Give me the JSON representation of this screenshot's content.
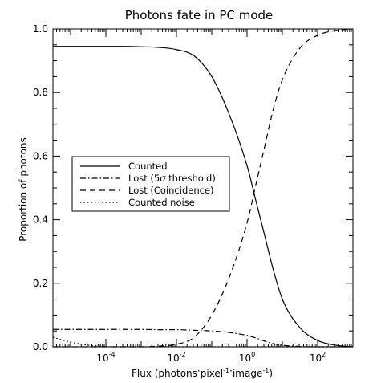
{
  "chart_data": {
    "type": "line",
    "title": "Photons fate in PC mode",
    "xlabel": {
      "base": "Flux (photons",
      "mid1": "pixel",
      "sup1": "-1",
      "mid2": "image",
      "sup2": "-1",
      "end": ")"
    },
    "ylabel": "Proportion of photons",
    "xscale": "log",
    "xlim_log10": [
      -5.5,
      3.0
    ],
    "ylim": [
      0.0,
      1.0
    ],
    "x_ticks": [
      {
        "base": "10",
        "exp": "-4",
        "log10": -4
      },
      {
        "base": "10",
        "exp": "-2",
        "log10": -2
      },
      {
        "base": "10",
        "exp": "0",
        "log10": 0
      },
      {
        "base": "10",
        "exp": "2",
        "log10": 2
      }
    ],
    "y_ticks": [
      {
        "label": "0.0",
        "value": 0.0
      },
      {
        "label": "0.2",
        "value": 0.2
      },
      {
        "label": "0.4",
        "value": 0.4
      },
      {
        "label": "0.6",
        "value": 0.6
      },
      {
        "label": "0.8",
        "value": 0.8
      },
      {
        "label": "1.0",
        "value": 1.0
      }
    ],
    "legend_position": "middle-left",
    "legend": [
      {
        "label": "Counted",
        "dash": "solid"
      },
      {
        "label_pre": "Lost (5",
        "symbol": "σ",
        "label_post": " threshold)",
        "dash": "dashdot"
      },
      {
        "label": "Lost (Coincidence)",
        "dash": "dashed"
      },
      {
        "label": "Counted noise",
        "dash": "dotted"
      }
    ],
    "x_log10": [
      -5.5,
      -5.0,
      -4.5,
      -4.0,
      -3.5,
      -3.0,
      -2.5,
      -2.0,
      -1.5,
      -1.0,
      -0.5,
      0.0,
      0.25,
      0.5,
      0.75,
      1.0,
      1.5,
      2.0,
      2.5,
      3.0
    ],
    "series": [
      {
        "name": "Counted",
        "dash": "solid",
        "values": [
          0.945,
          0.945,
          0.945,
          0.945,
          0.945,
          0.944,
          0.942,
          0.935,
          0.915,
          0.85,
          0.73,
          0.57,
          0.46,
          0.35,
          0.24,
          0.15,
          0.06,
          0.02,
          0.005,
          0.0
        ]
      },
      {
        "name": "Lost (5σ threshold)",
        "dash": "dashdot",
        "values": [
          0.055,
          0.055,
          0.055,
          0.055,
          0.055,
          0.055,
          0.054,
          0.054,
          0.052,
          0.05,
          0.045,
          0.036,
          0.028,
          0.018,
          0.01,
          0.005,
          0.001,
          0.0,
          0.0,
          0.0
        ]
      },
      {
        "name": "Lost (Coincidence)",
        "dash": "dashed",
        "values": [
          0.0,
          0.0,
          0.0,
          0.0,
          0.0,
          0.0,
          0.002,
          0.008,
          0.03,
          0.1,
          0.22,
          0.39,
          0.51,
          0.63,
          0.75,
          0.84,
          0.94,
          0.98,
          0.995,
          1.0
        ]
      },
      {
        "name": "Counted noise",
        "dash": "dotted",
        "values": [
          0.03,
          0.015,
          0.005,
          0.001,
          0.0,
          0.0,
          0.0,
          0.0,
          0.0,
          0.0,
          0.0,
          0.0,
          0.0,
          0.0,
          0.0,
          0.0,
          0.0,
          0.0,
          0.0,
          0.0
        ]
      }
    ]
  }
}
